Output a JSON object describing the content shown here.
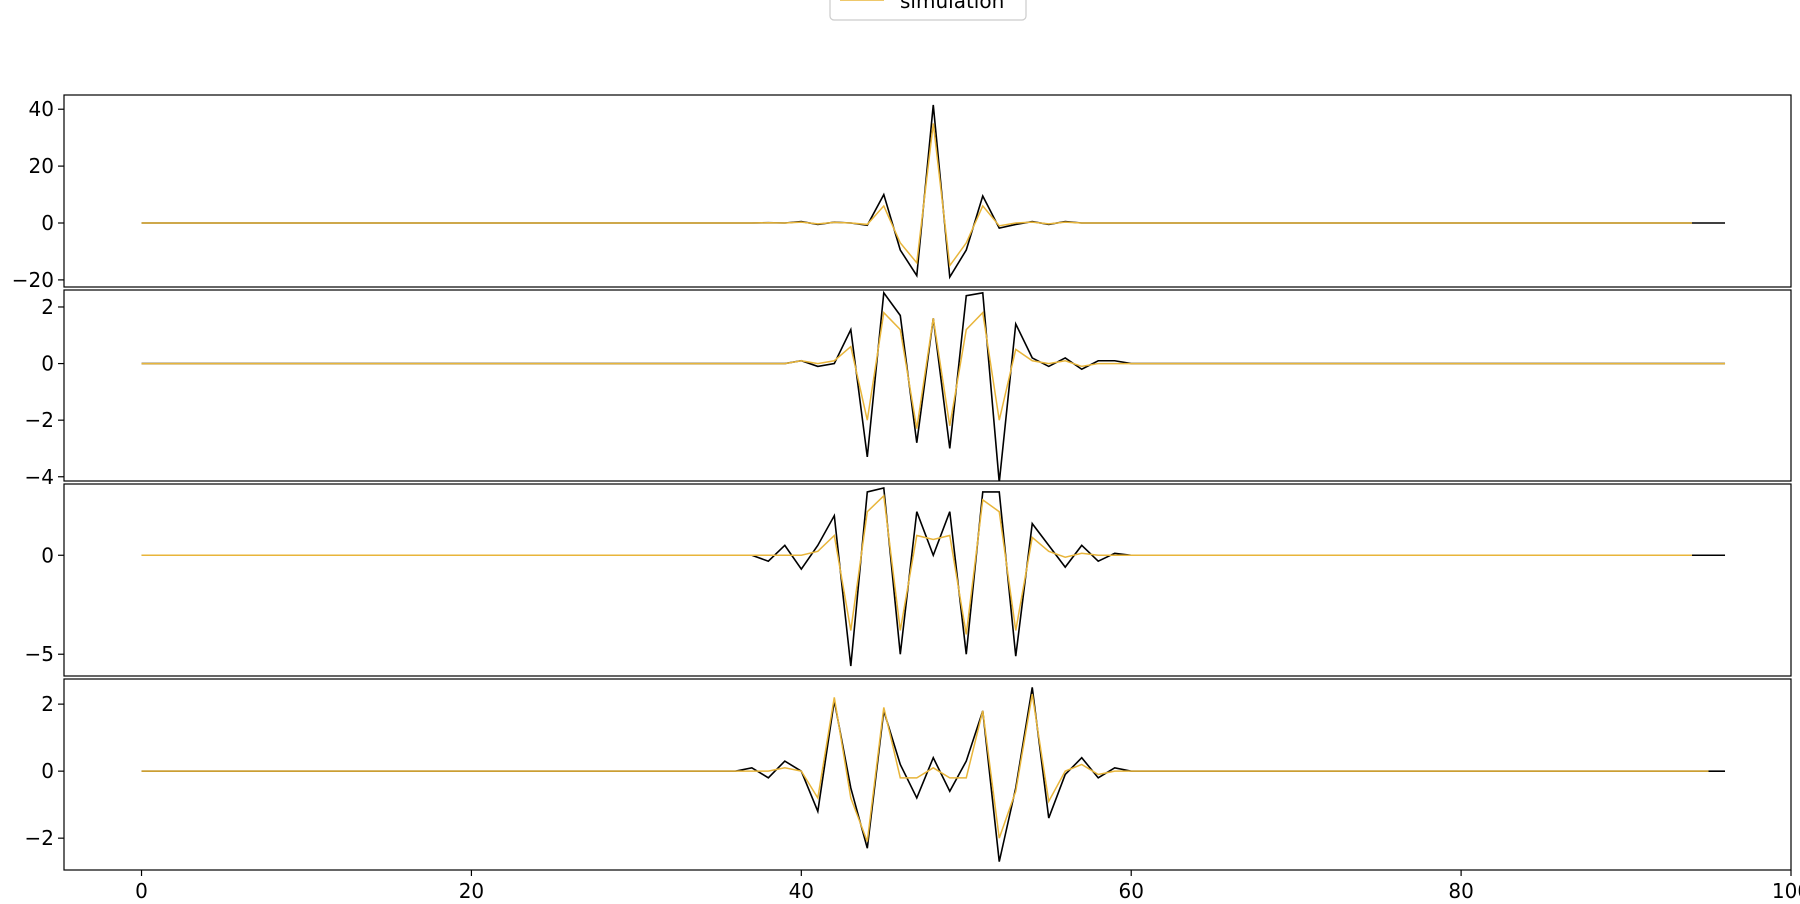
{
  "chart_data": {
    "type": "line",
    "legend": {
      "placement": "top-center",
      "entries": [
        {
          "name": "simulation",
          "color": "#e8b53a"
        }
      ]
    },
    "colors": {
      "measured": "#000000",
      "simulation": "#e8b53a"
    },
    "x": [
      0,
      1,
      2,
      3,
      4,
      5,
      6,
      7,
      8,
      9,
      10,
      11,
      12,
      13,
      14,
      15,
      16,
      17,
      18,
      19,
      20,
      21,
      22,
      23,
      24,
      25,
      26,
      27,
      28,
      29,
      30,
      31,
      32,
      33,
      34,
      35,
      36,
      37,
      38,
      39,
      40,
      41,
      42,
      43,
      44,
      45,
      46,
      47,
      48,
      49,
      50,
      51,
      52,
      53,
      54,
      55,
      56,
      57,
      58,
      59,
      60,
      61,
      62,
      63,
      64,
      65,
      66,
      67,
      68,
      69,
      70,
      71,
      72,
      73,
      74,
      75,
      76,
      77,
      78,
      79,
      80,
      81,
      82,
      83,
      84,
      85,
      86,
      87,
      88,
      89,
      90,
      91,
      92,
      93,
      94,
      95,
      96
    ],
    "xlim": [
      -4.7,
      100
    ],
    "xticks": [
      0,
      20,
      40,
      60,
      80,
      100
    ],
    "xtick_labels": [
      "0",
      "20",
      "40",
      "60",
      "80",
      "100"
    ],
    "grid": false,
    "panels": [
      {
        "ylim": [
          -22.5,
          45
        ],
        "yticks": [
          -20,
          0,
          20,
          40
        ],
        "ytick_labels": [
          "−20",
          "0",
          "20",
          "40"
        ],
        "series": [
          {
            "key": "measured",
            "values": [
              0,
              0,
              0,
              0,
              0,
              0,
              0,
              0,
              0,
              0,
              0,
              0,
              0,
              0,
              0,
              0,
              0,
              0,
              0,
              0,
              0,
              0,
              0,
              0,
              0,
              0,
              0,
              0,
              0,
              0,
              0,
              0,
              0,
              0,
              0,
              0,
              0,
              0,
              0.1,
              0,
              0.5,
              -0.5,
              0.3,
              0,
              -0.8,
              10,
              -9.5,
              -18.5,
              41.5,
              -19,
              -9.5,
              9.5,
              -1.8,
              -0.5,
              0.5,
              -0.5,
              0.5,
              0,
              0,
              0,
              0,
              0,
              0,
              0,
              0,
              0,
              0,
              0,
              0,
              0,
              0,
              0,
              0,
              0,
              0,
              0,
              0,
              0,
              0,
              0,
              0,
              0,
              0,
              0,
              0,
              0,
              0,
              0,
              0,
              0,
              0,
              0,
              0,
              0,
              0,
              0,
              0
            ]
          },
          {
            "key": "simulation",
            "values": [
              0,
              0,
              0,
              0,
              0,
              0,
              0,
              0,
              0,
              0,
              0,
              0,
              0,
              0,
              0,
              0,
              0,
              0,
              0,
              0,
              0,
              0,
              0,
              0,
              0,
              0,
              0,
              0,
              0,
              0,
              0,
              0,
              0,
              0,
              0,
              0,
              0,
              0,
              0.1,
              0,
              0.3,
              -0.3,
              0.2,
              0,
              -0.5,
              6,
              -7,
              -14,
              35,
              -15,
              -7,
              6,
              -1,
              0,
              0.3,
              -0.3,
              0.3,
              0,
              0,
              0,
              0,
              0,
              0,
              0,
              0,
              0,
              0,
              0,
              0,
              0,
              0,
              0,
              0,
              0,
              0,
              0,
              0,
              0,
              0,
              0,
              0,
              0,
              0,
              0,
              0,
              0,
              0,
              0,
              0,
              0,
              0,
              0,
              0,
              0,
              0
            ]
          }
        ]
      },
      {
        "ylim": [
          -4.15,
          2.6
        ],
        "yticks": [
          -4,
          -2,
          0,
          2
        ],
        "ytick_labels": [
          "−4",
          "−2",
          "0",
          "2"
        ],
        "series": [
          {
            "key": "measured",
            "values": [
              0,
              0,
              0,
              0,
              0,
              0,
              0,
              0,
              0,
              0,
              0,
              0,
              0,
              0,
              0,
              0,
              0,
              0,
              0,
              0,
              0,
              0,
              0,
              0,
              0,
              0,
              0,
              0,
              0,
              0,
              0,
              0,
              0,
              0,
              0,
              0,
              0,
              0,
              0,
              0,
              0.1,
              -0.1,
              0,
              1.2,
              -3.3,
              2.5,
              1.7,
              -2.8,
              1.6,
              -3,
              2.4,
              2.5,
              -4.2,
              1.4,
              0.2,
              -0.1,
              0.2,
              -0.2,
              0.1,
              0.1,
              0,
              0,
              0,
              0,
              0,
              0,
              0,
              0,
              0,
              0,
              0,
              0,
              0,
              0,
              0,
              0,
              0,
              0,
              0,
              0,
              0,
              0,
              0,
              0,
              0,
              0,
              0,
              0,
              0,
              0,
              0,
              0,
              0,
              0,
              0,
              0,
              0
            ]
          },
          {
            "key": "simulation",
            "values": [
              0,
              0,
              0,
              0,
              0,
              0,
              0,
              0,
              0,
              0,
              0,
              0,
              0,
              0,
              0,
              0,
              0,
              0,
              0,
              0,
              0,
              0,
              0,
              0,
              0,
              0,
              0,
              0,
              0,
              0,
              0,
              0,
              0,
              0,
              0,
              0,
              0,
              0,
              0,
              0,
              0.1,
              0,
              0.1,
              0.6,
              -2,
              1.8,
              1.2,
              -2.3,
              1.6,
              -2.2,
              1.2,
              1.8,
              -2,
              0.5,
              0.1,
              0,
              0.1,
              -0.1,
              0,
              0,
              0,
              0,
              0,
              0,
              0,
              0,
              0,
              0,
              0,
              0,
              0,
              0,
              0,
              0,
              0,
              0,
              0,
              0,
              0,
              0,
              0,
              0,
              0,
              0,
              0,
              0,
              0,
              0,
              0,
              0,
              0,
              0,
              0,
              0,
              0,
              0,
              0
            ]
          }
        ]
      },
      {
        "ylim": [
          -6.1,
          3.6
        ],
        "yticks": [
          -5,
          0
        ],
        "ytick_labels": [
          "−5",
          "0"
        ],
        "series": [
          {
            "key": "measured",
            "values": [
              0,
              0,
              0,
              0,
              0,
              0,
              0,
              0,
              0,
              0,
              0,
              0,
              0,
              0,
              0,
              0,
              0,
              0,
              0,
              0,
              0,
              0,
              0,
              0,
              0,
              0,
              0,
              0,
              0,
              0,
              0,
              0,
              0,
              0,
              0,
              0,
              0,
              0,
              -0.3,
              0.5,
              -0.7,
              0.5,
              2,
              -5.6,
              3.2,
              3.4,
              -5,
              2.2,
              0,
              2.2,
              -5,
              3.2,
              3.2,
              -5.1,
              1.6,
              0.5,
              -0.6,
              0.5,
              -0.3,
              0.1,
              0,
              0,
              0,
              0,
              0,
              0,
              0,
              0,
              0,
              0,
              0,
              0,
              0,
              0,
              0,
              0,
              0,
              0,
              0,
              0,
              0,
              0,
              0,
              0,
              0,
              0,
              0,
              0,
              0,
              0,
              0,
              0,
              0,
              0,
              0,
              0,
              0
            ]
          },
          {
            "key": "simulation",
            "values": [
              0,
              0,
              0,
              0,
              0,
              0,
              0,
              0,
              0,
              0,
              0,
              0,
              0,
              0,
              0,
              0,
              0,
              0,
              0,
              0,
              0,
              0,
              0,
              0,
              0,
              0,
              0,
              0,
              0,
              0,
              0,
              0,
              0,
              0,
              0,
              0,
              0,
              0,
              0,
              0,
              0,
              0.2,
              1,
              -3.8,
              2.2,
              3,
              -3.8,
              1,
              0.8,
              1,
              -4,
              2.8,
              2.2,
              -3.8,
              0.9,
              0.2,
              -0.1,
              0.1,
              0,
              0,
              0,
              0,
              0,
              0,
              0,
              0,
              0,
              0,
              0,
              0,
              0,
              0,
              0,
              0,
              0,
              0,
              0,
              0,
              0,
              0,
              0,
              0,
              0,
              0,
              0,
              0,
              0,
              0,
              0,
              0,
              0,
              0,
              0,
              0,
              0
            ]
          }
        ]
      },
      {
        "ylim": [
          -2.95,
          2.75
        ],
        "yticks": [
          -2,
          0,
          2
        ],
        "ytick_labels": [
          "−2",
          "0",
          "2"
        ],
        "series": [
          {
            "key": "measured",
            "values": [
              0,
              0,
              0,
              0,
              0,
              0,
              0,
              0,
              0,
              0,
              0,
              0,
              0,
              0,
              0,
              0,
              0,
              0,
              0,
              0,
              0,
              0,
              0,
              0,
              0,
              0,
              0,
              0,
              0,
              0,
              0,
              0,
              0,
              0,
              0,
              0,
              0,
              0.1,
              -0.2,
              0.3,
              0,
              -1.2,
              2.1,
              -0.5,
              -2.3,
              1.8,
              0.2,
              -0.8,
              0.4,
              -0.6,
              0.3,
              1.8,
              -2.7,
              -0.5,
              2.5,
              -1.4,
              -0.1,
              0.4,
              -0.2,
              0.1,
              0,
              0,
              0,
              0,
              0,
              0,
              0,
              0,
              0,
              0,
              0,
              0,
              0,
              0,
              0,
              0,
              0,
              0,
              0,
              0,
              0,
              0,
              0,
              0,
              0,
              0,
              0,
              0,
              0,
              0,
              0,
              0,
              0,
              0,
              0,
              0,
              0
            ]
          },
          {
            "key": "simulation",
            "values": [
              0,
              0,
              0,
              0,
              0,
              0,
              0,
              0,
              0,
              0,
              0,
              0,
              0,
              0,
              0,
              0,
              0,
              0,
              0,
              0,
              0,
              0,
              0,
              0,
              0,
              0,
              0,
              0,
              0,
              0,
              0,
              0,
              0,
              0,
              0,
              0,
              0,
              0,
              0,
              0.1,
              0,
              -0.8,
              2.2,
              -0.8,
              -2.1,
              1.9,
              -0.2,
              -0.2,
              0.1,
              -0.2,
              -0.2,
              1.8,
              -2,
              -0.6,
              2.3,
              -0.9,
              0,
              0.2,
              -0.1,
              0,
              0,
              0,
              0,
              0,
              0,
              0,
              0,
              0,
              0,
              0,
              0,
              0,
              0,
              0,
              0,
              0,
              0,
              0,
              0,
              0,
              0,
              0,
              0,
              0,
              0,
              0,
              0,
              0,
              0,
              0,
              0,
              0,
              0,
              0,
              0,
              0
            ]
          }
        ]
      }
    ]
  }
}
